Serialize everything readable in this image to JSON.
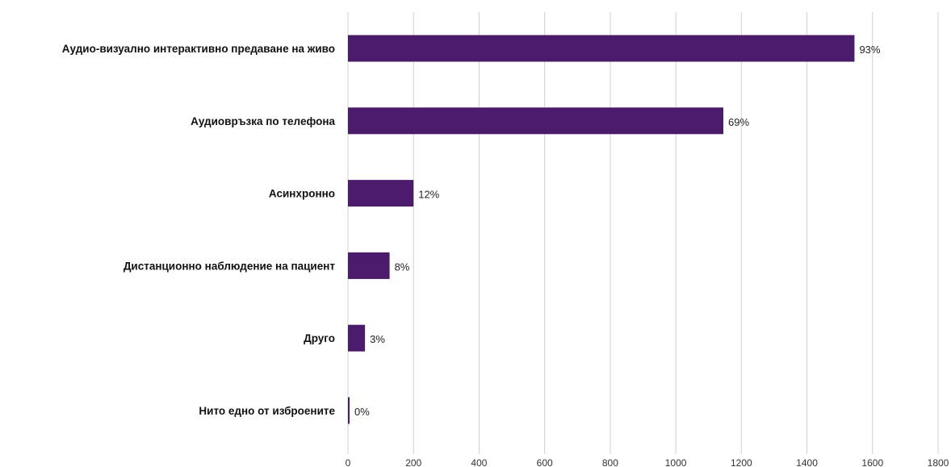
{
  "chart_data": {
    "type": "bar",
    "orientation": "horizontal",
    "categories": [
      "Аудио-визуално интерактивно предаване на живо",
      "Аудиовръзка по телефона",
      "Асинхронно",
      "Дистанционно наблюдение на пациент",
      "Друго",
      "Нито едно от изброените"
    ],
    "values": [
      1545,
      1145,
      200,
      127,
      52,
      4
    ],
    "data_labels": [
      "93%",
      "69%",
      "12%",
      "8%",
      "3%",
      "0%"
    ],
    "xlim": [
      0,
      1800
    ],
    "xticks": [
      0,
      200,
      400,
      600,
      800,
      1000,
      1200,
      1400,
      1600,
      1800
    ],
    "grid": true,
    "bar_color": "#4a1a6b",
    "grid_color": "#d0d0d0",
    "title": "",
    "xlabel": "",
    "ylabel": ""
  }
}
